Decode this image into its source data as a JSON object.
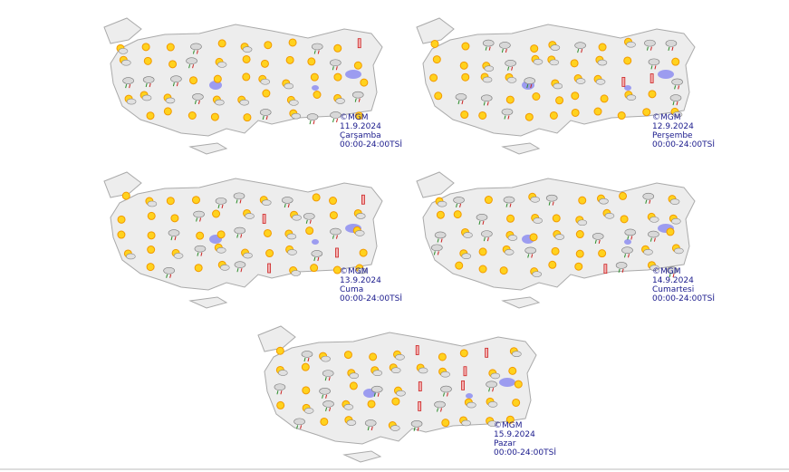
{
  "maps": [
    {
      "copyright": "©MGM",
      "date": "11.9.2024",
      "day": "Çarşamba",
      "period": "00:00-24:00TSİ"
    },
    {
      "copyright": "©MGM",
      "date": "12.9.2024",
      "day": "Perşembe",
      "period": "00:00-24:00TSİ"
    },
    {
      "copyright": "©MGM",
      "date": "13.9.2024",
      "day": "Cuma",
      "period": "00:00-24:00TSİ"
    },
    {
      "copyright": "©MGM",
      "date": "14.9.2024",
      "day": "Cumartesi",
      "period": "00:00-24:00TSİ"
    },
    {
      "copyright": "©MGM",
      "date": "15.9.2024",
      "day": "Pazar",
      "period": "00:00-24:00TSİ"
    }
  ]
}
